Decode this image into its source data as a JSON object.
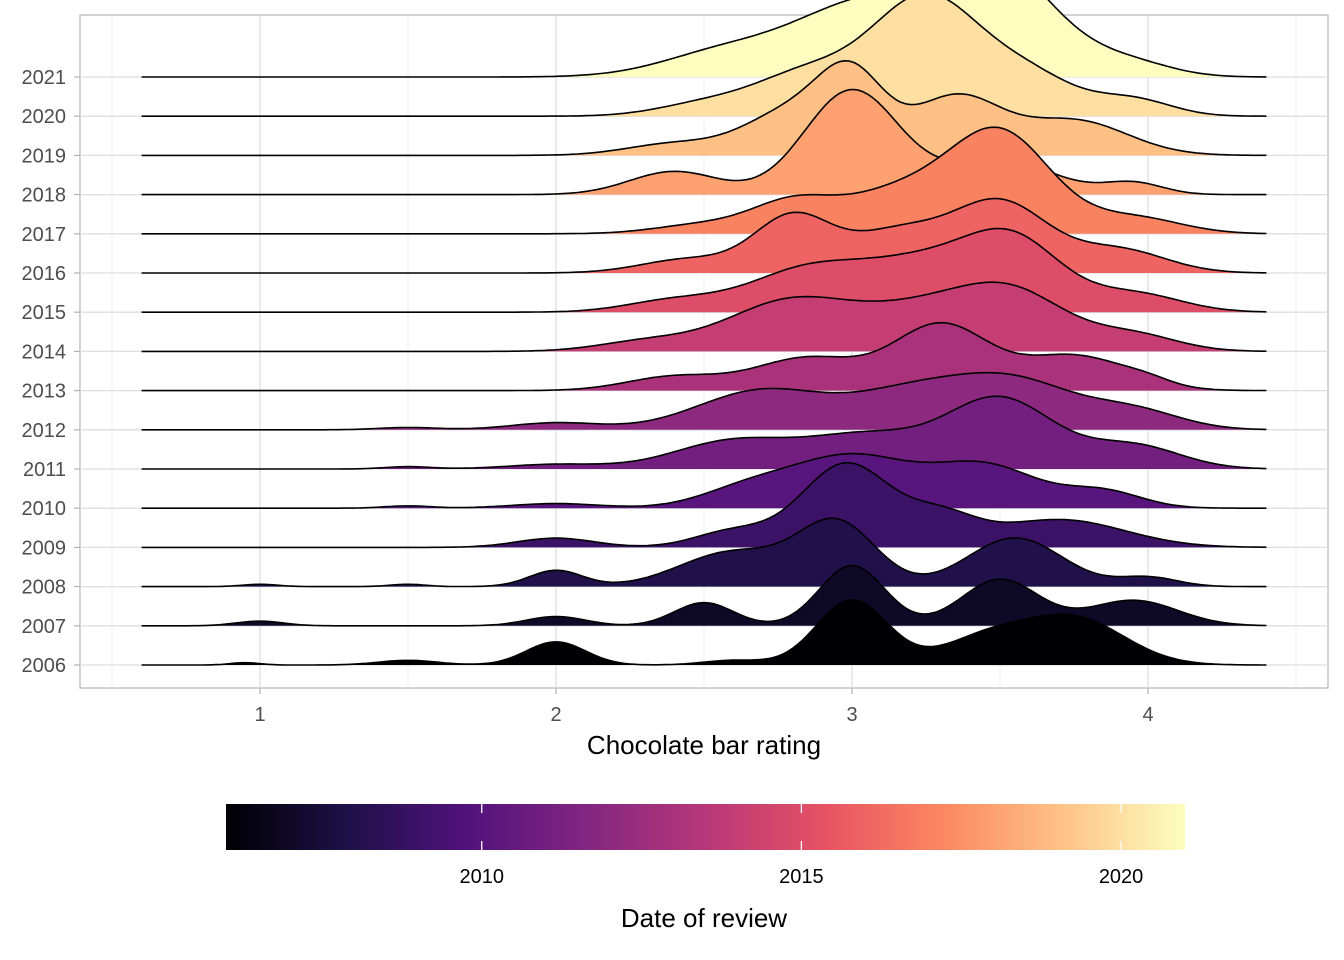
{
  "chart_data": {
    "type": "ridgeline",
    "xlabel": "Chocolate bar rating",
    "ylabel": "",
    "xlim": [
      0.4,
      4.6
    ],
    "x_ticks": [
      "1",
      "2",
      "3",
      "4"
    ],
    "grid": true,
    "legend": {
      "title": "Date of review",
      "position": "bottom",
      "range": [
        2006,
        2021
      ],
      "ticks": [
        "2010",
        "2015",
        "2020"
      ],
      "palette": [
        "#000004",
        "#1d1147",
        "#51127c",
        "#822681",
        "#b73779",
        "#e75263",
        "#fc8961",
        "#fec488",
        "#fcfdbf"
      ]
    },
    "series": [
      {
        "name": "2006",
        "peaks": [
          [
            0.95,
            0.05,
            0.01
          ],
          [
            1.5,
            0.1,
            0.02
          ],
          [
            2.0,
            0.1,
            0.1
          ],
          [
            2.6,
            0.1,
            0.02
          ],
          [
            3.0,
            0.12,
            0.28
          ],
          [
            3.45,
            0.15,
            0.11
          ],
          [
            3.75,
            0.17,
            0.2
          ]
        ]
      },
      {
        "name": "2007",
        "peaks": [
          [
            1.0,
            0.08,
            0.02
          ],
          [
            2.0,
            0.1,
            0.04
          ],
          [
            2.5,
            0.1,
            0.1
          ],
          [
            3.0,
            0.11,
            0.26
          ],
          [
            3.5,
            0.13,
            0.2
          ],
          [
            3.95,
            0.15,
            0.11
          ]
        ]
      },
      {
        "name": "2008",
        "peaks": [
          [
            1.0,
            0.06,
            0.01
          ],
          [
            1.5,
            0.06,
            0.01
          ],
          [
            2.0,
            0.09,
            0.07
          ],
          [
            2.6,
            0.18,
            0.15
          ],
          [
            2.95,
            0.13,
            0.27
          ],
          [
            3.55,
            0.16,
            0.21
          ],
          [
            4.0,
            0.1,
            0.04
          ]
        ]
      },
      {
        "name": "2009",
        "peaks": [
          [
            2.0,
            0.13,
            0.04
          ],
          [
            2.6,
            0.13,
            0.07
          ],
          [
            2.98,
            0.15,
            0.36
          ],
          [
            3.3,
            0.12,
            0.12
          ],
          [
            3.7,
            0.22,
            0.12
          ]
        ]
      },
      {
        "name": "2010",
        "peaks": [
          [
            1.5,
            0.08,
            0.01
          ],
          [
            2.0,
            0.15,
            0.02
          ],
          [
            2.65,
            0.16,
            0.08
          ],
          [
            3.0,
            0.2,
            0.22
          ],
          [
            3.45,
            0.18,
            0.18
          ],
          [
            3.85,
            0.13,
            0.07
          ]
        ]
      },
      {
        "name": "2011",
        "peaks": [
          [
            1.5,
            0.08,
            0.01
          ],
          [
            2.0,
            0.16,
            0.02
          ],
          [
            2.6,
            0.2,
            0.12
          ],
          [
            3.05,
            0.2,
            0.14
          ],
          [
            3.5,
            0.18,
            0.3
          ],
          [
            3.95,
            0.16,
            0.1
          ]
        ]
      },
      {
        "name": "2012",
        "peaks": [
          [
            1.5,
            0.1,
            0.01
          ],
          [
            2.0,
            0.15,
            0.03
          ],
          [
            2.7,
            0.22,
            0.17
          ],
          [
            3.2,
            0.2,
            0.15
          ],
          [
            3.55,
            0.2,
            0.2
          ],
          [
            3.95,
            0.16,
            0.08
          ]
        ]
      },
      {
        "name": "2013",
        "peaks": [
          [
            2.4,
            0.16,
            0.06
          ],
          [
            2.85,
            0.18,
            0.14
          ],
          [
            3.3,
            0.16,
            0.28
          ],
          [
            3.75,
            0.18,
            0.15
          ],
          [
            4.0,
            0.08,
            0.02
          ]
        ]
      },
      {
        "name": "2014",
        "peaks": [
          [
            2.3,
            0.16,
            0.04
          ],
          [
            2.8,
            0.22,
            0.22
          ],
          [
            3.25,
            0.2,
            0.16
          ],
          [
            3.55,
            0.18,
            0.23
          ],
          [
            3.95,
            0.15,
            0.07
          ]
        ]
      },
      {
        "name": "2015",
        "peaks": [
          [
            2.4,
            0.16,
            0.05
          ],
          [
            2.85,
            0.2,
            0.18
          ],
          [
            3.25,
            0.2,
            0.2
          ],
          [
            3.55,
            0.16,
            0.28
          ],
          [
            3.95,
            0.16,
            0.08
          ]
        ]
      },
      {
        "name": "2016",
        "peaks": [
          [
            2.45,
            0.16,
            0.06
          ],
          [
            2.8,
            0.13,
            0.24
          ],
          [
            3.15,
            0.16,
            0.17
          ],
          [
            3.5,
            0.16,
            0.3
          ],
          [
            3.9,
            0.16,
            0.1
          ]
        ]
      },
      {
        "name": "2017",
        "peaks": [
          [
            2.5,
            0.16,
            0.04
          ],
          [
            2.8,
            0.14,
            0.13
          ],
          [
            3.15,
            0.18,
            0.17
          ],
          [
            3.5,
            0.17,
            0.43
          ],
          [
            3.95,
            0.16,
            0.07
          ]
        ]
      },
      {
        "name": "2018",
        "peaks": [
          [
            2.4,
            0.15,
            0.1
          ],
          [
            3.0,
            0.16,
            0.45
          ],
          [
            3.5,
            0.18,
            0.15
          ],
          [
            3.95,
            0.1,
            0.05
          ]
        ]
      },
      {
        "name": "2019",
        "peaks": [
          [
            2.4,
            0.16,
            0.05
          ],
          [
            2.8,
            0.16,
            0.19
          ],
          [
            3.0,
            0.11,
            0.3
          ],
          [
            3.35,
            0.15,
            0.25
          ],
          [
            3.75,
            0.18,
            0.15
          ]
        ]
      },
      {
        "name": "2020",
        "peaks": [
          [
            2.5,
            0.16,
            0.05
          ],
          [
            2.85,
            0.18,
            0.18
          ],
          [
            3.25,
            0.18,
            0.5
          ],
          [
            3.6,
            0.16,
            0.16
          ],
          [
            3.95,
            0.13,
            0.07
          ]
        ]
      },
      {
        "name": "2021",
        "peaks": [
          [
            2.6,
            0.22,
            0.12
          ],
          [
            3.0,
            0.2,
            0.25
          ],
          [
            3.45,
            0.22,
            0.52
          ],
          [
            3.95,
            0.14,
            0.05
          ]
        ]
      }
    ]
  }
}
